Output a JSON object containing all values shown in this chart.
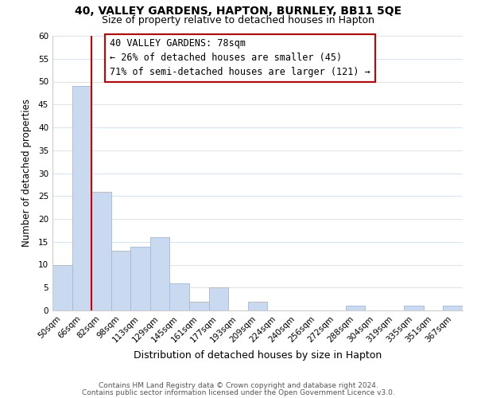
{
  "title": "40, VALLEY GARDENS, HAPTON, BURNLEY, BB11 5QE",
  "subtitle": "Size of property relative to detached houses in Hapton",
  "xlabel": "Distribution of detached houses by size in Hapton",
  "ylabel": "Number of detached properties",
  "bin_labels": [
    "50sqm",
    "66sqm",
    "82sqm",
    "98sqm",
    "113sqm",
    "129sqm",
    "145sqm",
    "161sqm",
    "177sqm",
    "193sqm",
    "209sqm",
    "224sqm",
    "240sqm",
    "256sqm",
    "272sqm",
    "288sqm",
    "304sqm",
    "319sqm",
    "335sqm",
    "351sqm",
    "367sqm"
  ],
  "bar_values": [
    10,
    49,
    26,
    13,
    14,
    16,
    6,
    2,
    5,
    0,
    2,
    0,
    0,
    0,
    0,
    1,
    0,
    0,
    1,
    0,
    1
  ],
  "bar_color": "#c8d9f0",
  "bar_edge_color": "#a0b8d8",
  "vline_x_index": 1,
  "vline_color": "#cc0000",
  "ylim": [
    0,
    60
  ],
  "yticks": [
    0,
    5,
    10,
    15,
    20,
    25,
    30,
    35,
    40,
    45,
    50,
    55,
    60
  ],
  "annotation_title": "40 VALLEY GARDENS: 78sqm",
  "annotation_line1": "← 26% of detached houses are smaller (45)",
  "annotation_line2": "71% of semi-detached houses are larger (121) →",
  "footer1": "Contains HM Land Registry data © Crown copyright and database right 2024.",
  "footer2": "Contains public sector information licensed under the Open Government Licence v3.0.",
  "title_fontsize": 10,
  "subtitle_fontsize": 9,
  "xlabel_fontsize": 9,
  "ylabel_fontsize": 8.5,
  "tick_fontsize": 7.5,
  "annotation_fontsize": 8.5,
  "footer_fontsize": 6.5
}
